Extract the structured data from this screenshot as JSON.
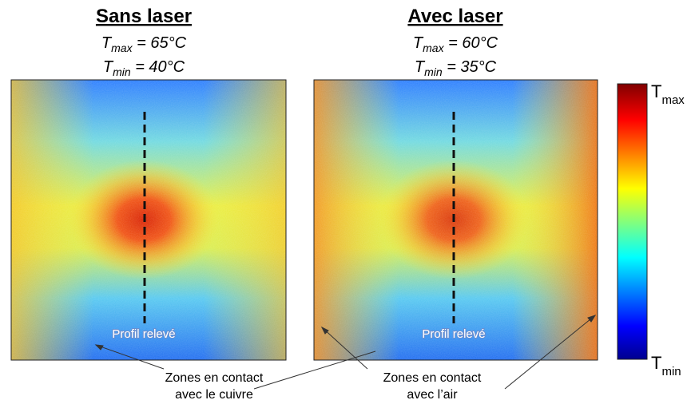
{
  "panels": [
    {
      "title": "Sans laser",
      "tmax": {
        "symbol": "T",
        "subscript": "max",
        "value": " = 65°C"
      },
      "tmin": {
        "symbol": "T",
        "subscript": "min",
        "value": " = 40°C"
      },
      "profile_label": "Profil relevé"
    },
    {
      "title": "Avec laser",
      "tmax": {
        "symbol": "T",
        "subscript": "max",
        "value": " = 60°C"
      },
      "tmin": {
        "symbol": "T",
        "subscript": "min",
        "value": " = 35°C"
      },
      "profile_label": "Profil relevé"
    }
  ],
  "colorbar": {
    "max": {
      "symbol": "T",
      "subscript": "max"
    },
    "min": {
      "symbol": "T",
      "subscript": "min"
    }
  },
  "annotations": [
    {
      "lines": [
        "Zones en contact",
        "avec le cuivre"
      ]
    },
    {
      "lines": [
        "Zones en contact",
        "avec l’air"
      ]
    }
  ]
}
